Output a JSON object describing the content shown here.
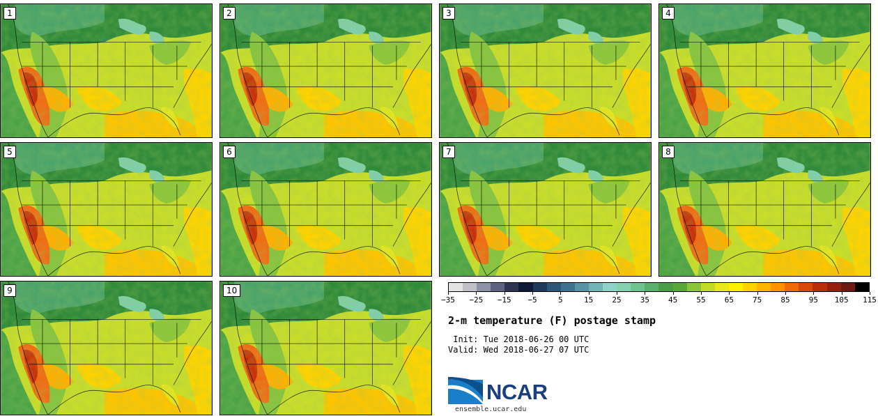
{
  "title": "2-m temperature (F) postage stamp",
  "init_line": " Init: Tue 2018-06-26 00 UTC",
  "valid_line": "Valid: Wed 2018-06-27 07 UTC",
  "logo_text": "NCAR",
  "logo_url": "ensemble.ucar.edu",
  "members": [
    "1",
    "2",
    "3",
    "4",
    "5",
    "6",
    "7",
    "8",
    "9",
    "10"
  ],
  "colorbar": {
    "min": -35,
    "max": 120,
    "step": 5,
    "tick_labels": [
      "−35",
      "−25",
      "−15",
      "−5",
      "5",
      "15",
      "25",
      "35",
      "45",
      "55",
      "65",
      "75",
      "85",
      "95",
      "105",
      "115"
    ],
    "tick_values": [
      -35,
      -25,
      -15,
      -5,
      5,
      15,
      25,
      35,
      45,
      55,
      65,
      75,
      85,
      95,
      105,
      115
    ],
    "colors": [
      "#e3e3e5",
      "#c0c0c8",
      "#8f93a6",
      "#5d6280",
      "#2f3550",
      "#0f1a38",
      "#1f3a5a",
      "#2e5677",
      "#3f728e",
      "#5a93a4",
      "#72b3b6",
      "#8fd3c8",
      "#86d2b0",
      "#6fc38e",
      "#58b06c",
      "#4a9e48",
      "#5aa83a",
      "#8bc63a",
      "#c3dc2a",
      "#e9e81c",
      "#ffef00",
      "#ffd200",
      "#ffb400",
      "#ff9000",
      "#f06a0a",
      "#d84a0a",
      "#b8300a",
      "#952010",
      "#6e1a10",
      "#000000"
    ]
  }
}
